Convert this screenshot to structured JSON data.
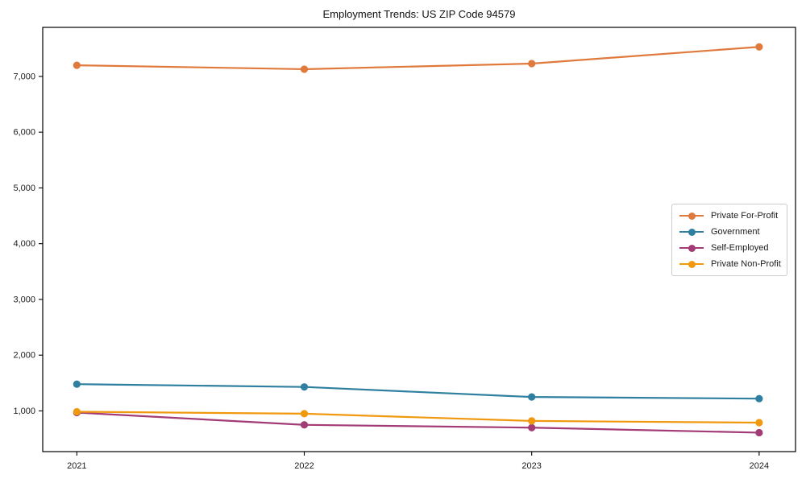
{
  "title": "Employment Trends: US ZIP Code 94579",
  "chart_data": {
    "type": "line",
    "title": "Employment Trends: US ZIP Code 94579",
    "xlabel": "",
    "ylabel": "",
    "x": [
      2021,
      2022,
      2023,
      2024
    ],
    "x_tick_labels": [
      "2021",
      "2022",
      "2023",
      "2024"
    ],
    "y_ticks": [
      1000,
      2000,
      3000,
      4000,
      5000,
      6000,
      7000
    ],
    "y_tick_labels": [
      "1,000",
      "2,000",
      "3,000",
      "4,000",
      "5,000",
      "6,000",
      "7,000"
    ],
    "xlim": [
      2020.85,
      2024.16
    ],
    "ylim": [
      270,
      7880
    ],
    "grid": false,
    "legend_position": "right-middle",
    "frame_color": "#000000",
    "tick_text_color": "#1a1a1a",
    "series": [
      {
        "name": "Private For-Profit",
        "color": "#E07A3C",
        "values": [
          7200,
          7130,
          7230,
          7530
        ]
      },
      {
        "name": "Government",
        "color": "#2F7FA0",
        "values": [
          1480,
          1430,
          1250,
          1220
        ]
      },
      {
        "name": "Self-Employed",
        "color": "#A23B76",
        "values": [
          970,
          750,
          700,
          610
        ]
      },
      {
        "name": "Private Non-Profit",
        "color": "#F0990E",
        "values": [
          985,
          950,
          820,
          790
        ]
      }
    ]
  }
}
